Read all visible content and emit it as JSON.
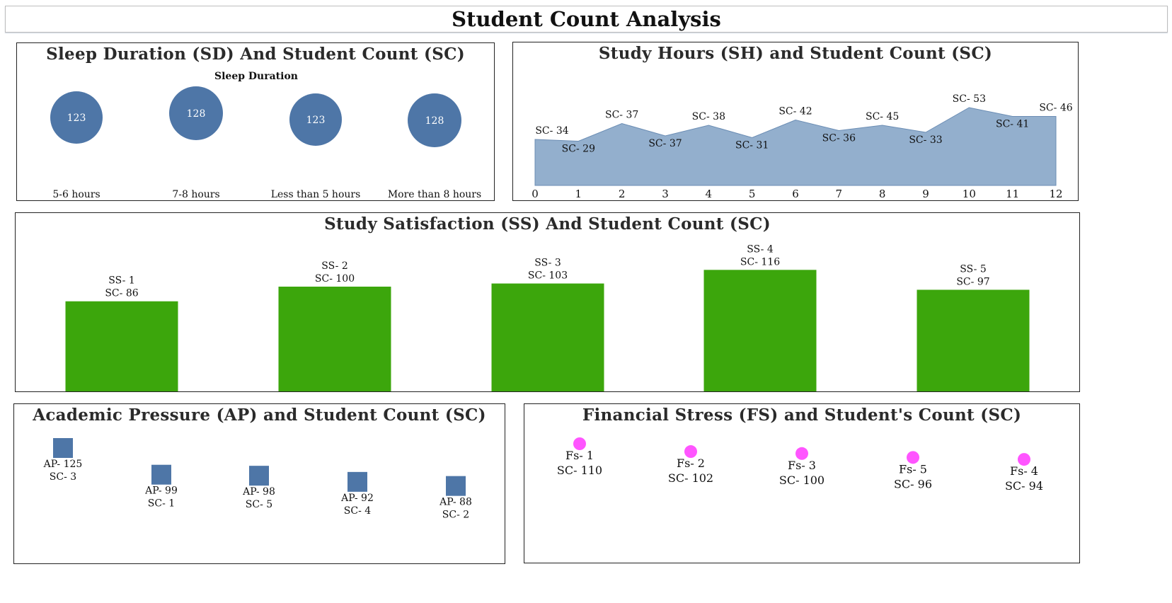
{
  "page_title": "Student Count Analysis",
  "colors": {
    "blue": "#4e76a7",
    "area": "#93afcd",
    "area_line": "#6b8db4",
    "green": "#3ca60c",
    "pink": "#ff55ff"
  },
  "panels": {
    "sleep": {
      "title": "Sleep Duration (SD) And Student Count (SC)",
      "header": "Sleep Duration"
    },
    "study_hours": {
      "title": "Study Hours (SH) and Student Count (SC)"
    },
    "satisfaction": {
      "title": "Study Satisfaction (SS) And Student Count (SC)"
    },
    "academic": {
      "title": "Academic Pressure (AP) and Student Count (SC)"
    },
    "financial": {
      "title": "Financial Stress (FS) and Student's Count (SC)"
    }
  },
  "chart_data": [
    {
      "type": "scatter",
      "title": "Sleep Duration (SD) And Student Count (SC)",
      "header": "Sleep Duration",
      "categories": [
        "5-6 hours",
        "7-8 hours",
        "Less than 5 hours",
        "More than 8 hours"
      ],
      "values": [
        123,
        128,
        123,
        128
      ],
      "value_labels": [
        "123",
        "128",
        "123",
        "128"
      ]
    },
    {
      "type": "area",
      "title": "Study Hours (SH) and Student Count (SC)",
      "x": [
        0,
        1,
        2,
        3,
        4,
        5,
        6,
        7,
        8,
        9,
        10,
        11,
        12
      ],
      "x_labels": [
        "0",
        "1",
        "2",
        "3",
        "4",
        "5",
        "6",
        "7",
        "8",
        "9",
        "10",
        "11",
        "12"
      ],
      "values": [
        34,
        29,
        37,
        37,
        38,
        31,
        42,
        36,
        45,
        33,
        53,
        41,
        46
      ],
      "value_labels": [
        "SC- 34",
        "SC- 29",
        "SC- 37",
        "SC- 37",
        "SC- 38",
        "SC- 31",
        "SC- 42",
        "SC- 36",
        "SC- 45",
        "SC- 33",
        "SC- 53",
        "SC- 41",
        "SC- 46"
      ],
      "profile": [
        36,
        35,
        45,
        38,
        44,
        37,
        47,
        41,
        44,
        40,
        54,
        49,
        49
      ]
    },
    {
      "type": "bar",
      "title": "Study Satisfaction (SS) And Student Count (SC)",
      "categories": [
        "SS- 1",
        "SS- 2",
        "SS- 3",
        "SS- 4",
        "SS- 5"
      ],
      "values": [
        86,
        100,
        103,
        116,
        97
      ],
      "value_labels": [
        "SC- 86",
        "SC- 100",
        "SC- 103",
        "SC- 116",
        "SC- 97"
      ]
    },
    {
      "type": "scatter",
      "title": "Academic Pressure (AP) and Student Count (SC)",
      "categories": [
        "AP- 125",
        "AP- 99",
        "AP- 98",
        "AP- 92",
        "AP- 88"
      ],
      "values": [
        125,
        99,
        98,
        92,
        88
      ],
      "sub_labels": [
        "SC- 3",
        "SC- 1",
        "SC- 5",
        "SC- 4",
        "SC- 2"
      ]
    },
    {
      "type": "scatter",
      "title": "Financial Stress (FS) and Student's Count (SC)",
      "categories": [
        "Fs- 1",
        "Fs- 2",
        "Fs- 3",
        "Fs- 5",
        "Fs- 4"
      ],
      "values": [
        110,
        102,
        100,
        96,
        94
      ],
      "sub_labels": [
        "SC- 110",
        "SC- 102",
        "SC- 100",
        "SC- 96",
        "SC- 94"
      ]
    }
  ]
}
